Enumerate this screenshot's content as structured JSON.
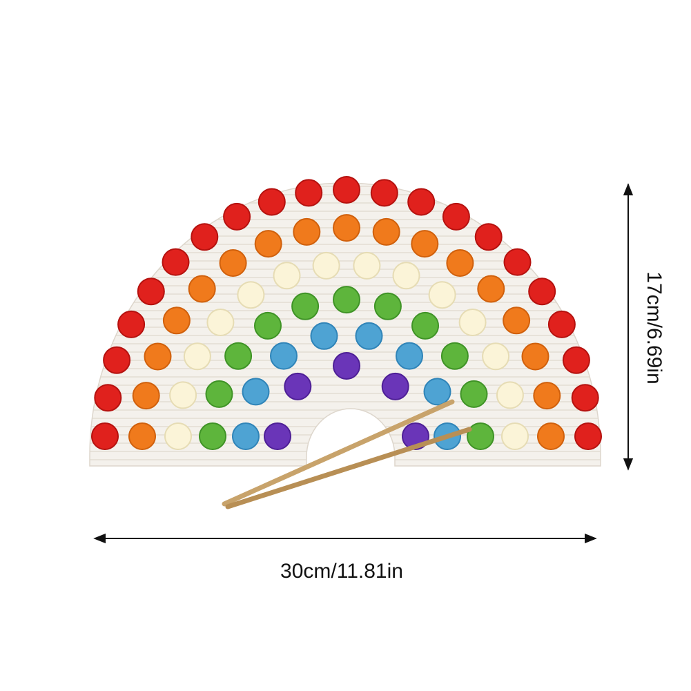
{
  "dimensions": {
    "width": "30cm/11.81in",
    "height": "17cm/6.69in"
  }
}
